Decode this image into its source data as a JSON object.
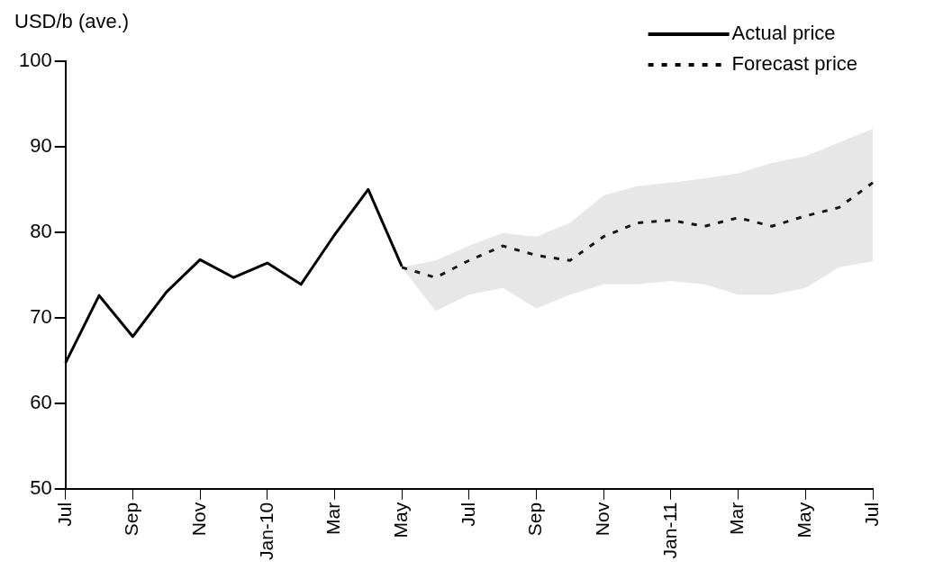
{
  "chart_data": {
    "type": "line",
    "ylabel": "USD/b (ave.)",
    "categories": [
      "Jul",
      null,
      "Sep",
      null,
      "Nov",
      null,
      "Jan-10",
      null,
      "Mar",
      null,
      "May",
      null,
      "Jul",
      null,
      "Sep",
      null,
      "Nov",
      null,
      "Jan-11",
      null,
      "Mar",
      null,
      "May",
      null,
      "Jul"
    ],
    "series": [
      {
        "name": "Actual price",
        "color": "#000000",
        "line_style": "solid",
        "values": [
          64.7,
          72.6,
          67.8,
          73.0,
          76.8,
          74.7,
          76.4,
          73.9,
          79.7,
          85.0,
          76.0,
          null,
          null,
          null,
          null,
          null,
          null,
          null,
          null,
          null,
          null,
          null,
          null,
          null,
          null
        ]
      },
      {
        "name": "Forecast price",
        "color": "#000000",
        "line_style": "dotted",
        "values": [
          null,
          null,
          null,
          null,
          null,
          null,
          null,
          null,
          null,
          null,
          75.9,
          74.7,
          76.7,
          78.4,
          77.3,
          76.7,
          79.5,
          81.1,
          81.4,
          80.7,
          81.7,
          80.7,
          81.9,
          82.9,
          85.8
        ],
        "lower": [
          null,
          null,
          null,
          null,
          null,
          null,
          null,
          null,
          null,
          null,
          75.9,
          70.8,
          72.7,
          73.5,
          71.1,
          72.7,
          73.9,
          73.9,
          74.3,
          73.9,
          72.7,
          72.7,
          73.5,
          75.9,
          76.6
        ],
        "upper": [
          null,
          null,
          null,
          null,
          null,
          null,
          null,
          null,
          null,
          null,
          75.9,
          76.7,
          78.4,
          79.9,
          79.5,
          81.1,
          84.3,
          85.4,
          85.8,
          86.3,
          86.9,
          88.1,
          88.9,
          90.5,
          92.1
        ]
      }
    ],
    "ylim": [
      50,
      100
    ],
    "yticks": [
      50,
      60,
      70,
      80,
      90,
      100
    ],
    "grid": false,
    "legend": "top right",
    "marker": "none"
  }
}
